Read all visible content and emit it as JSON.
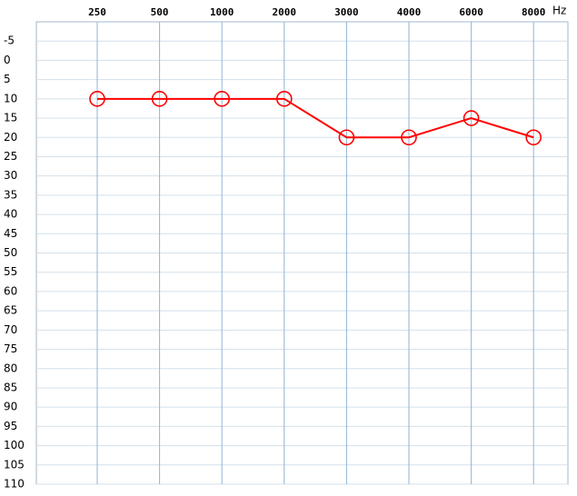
{
  "chart_data": {
    "type": "line",
    "xlabel": "Hz",
    "categories": [
      "250",
      "500",
      "1000",
      "2000",
      "3000",
      "4000",
      "6000",
      "8000"
    ],
    "series": [
      {
        "name": null,
        "color": "#ff0000",
        "values": [
          10,
          10,
          10,
          10,
          20,
          20,
          15,
          20
        ]
      }
    ],
    "ylim": [
      -10,
      110
    ],
    "y_inverted": true,
    "yticks": [
      -5,
      0,
      5,
      10,
      15,
      20,
      25,
      30,
      35,
      40,
      45,
      50,
      55,
      60,
      65,
      70,
      75,
      80,
      85,
      90,
      95,
      100,
      105,
      110
    ],
    "grid": true
  }
}
